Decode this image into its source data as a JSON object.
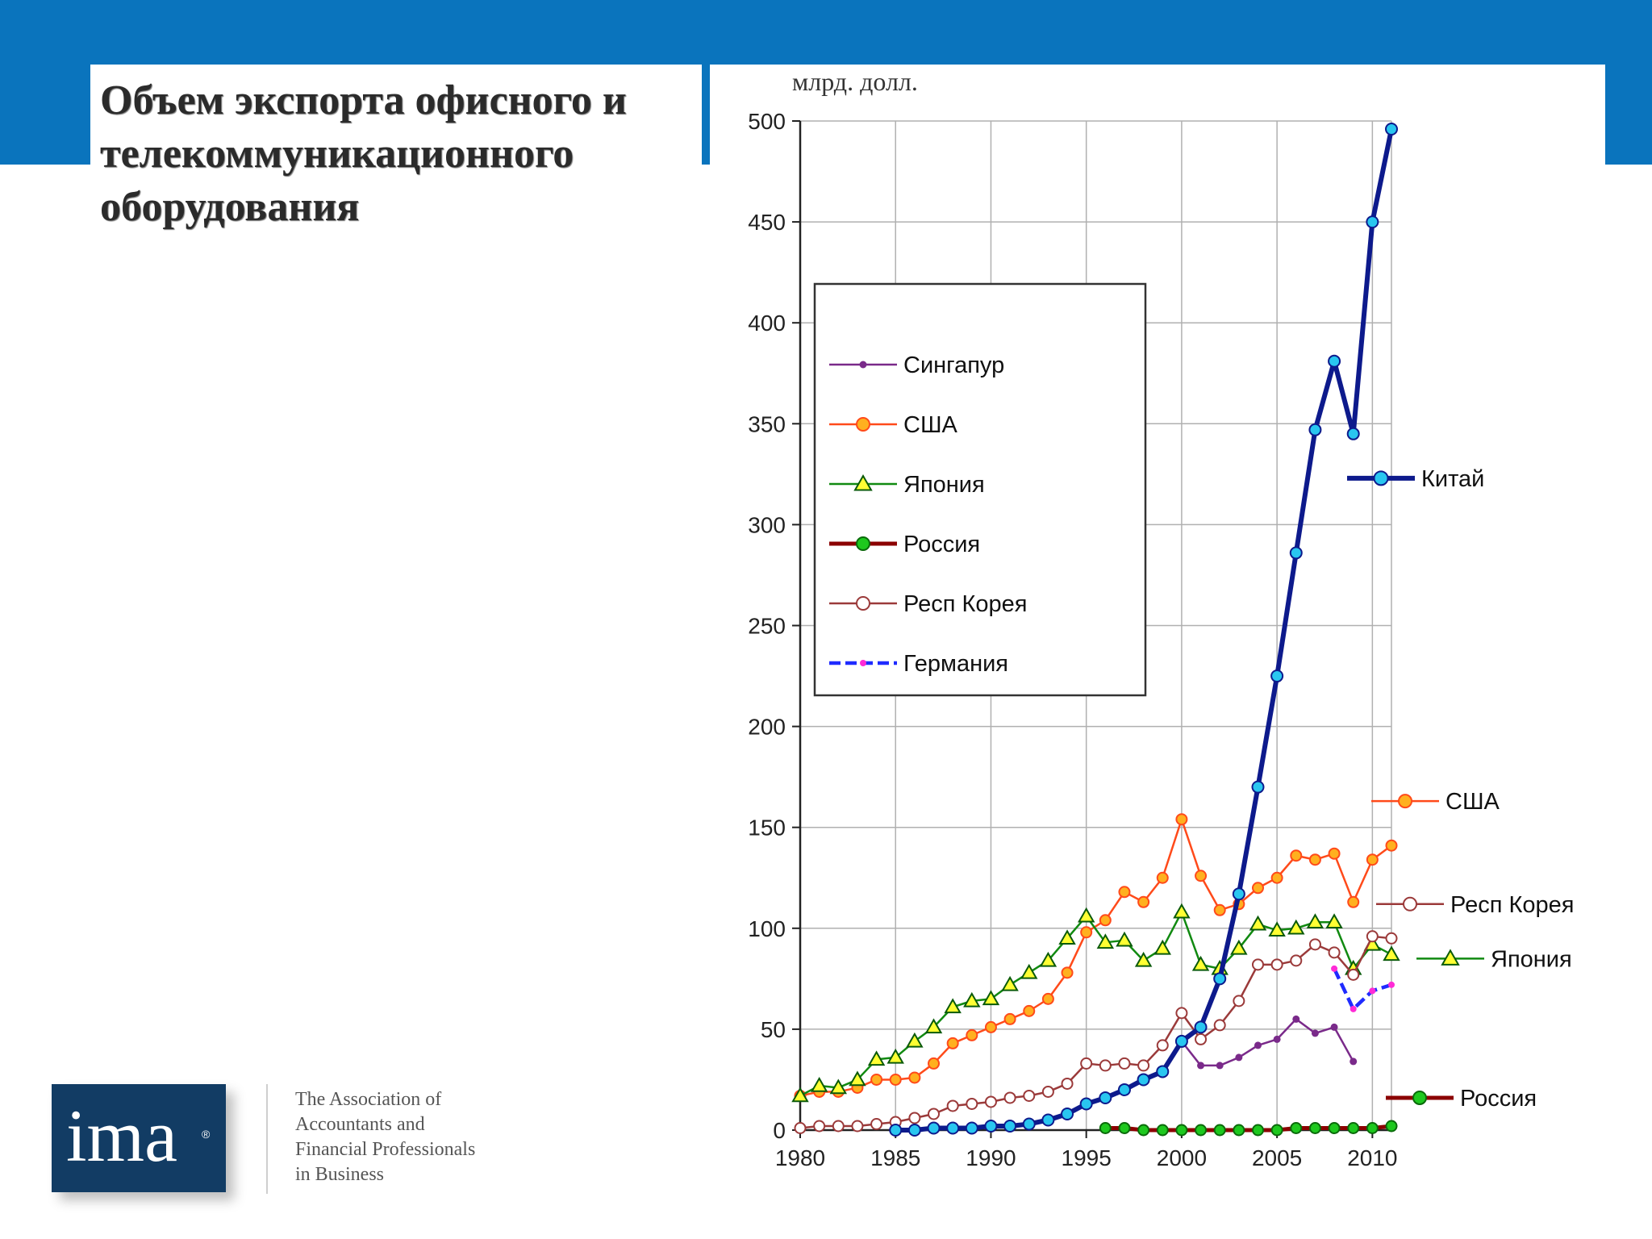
{
  "slide": {
    "title": "Объем экспорта офисного и\nтелекоммуникационного\n оборудования",
    "colors": {
      "band": "#0a74bd"
    }
  },
  "logo": {
    "mark": "ima",
    "registered": "®",
    "org_lines": [
      "The Association of",
      "Accountants and",
      "Financial Professionals",
      "in Business"
    ]
  },
  "chart_data": {
    "type": "line",
    "unit_label": "млрд. долл.",
    "xlabel": "",
    "ylabel": "млрд. долл.",
    "x_ticks": [
      1980,
      1985,
      1990,
      1995,
      2000,
      2005,
      2010
    ],
    "y_ticks": [
      0,
      50,
      100,
      150,
      200,
      250,
      300,
      350,
      400,
      450,
      500
    ],
    "xlim": [
      1980,
      2011
    ],
    "ylim": [
      0,
      500
    ],
    "grid": true,
    "legend_position": "upper-left inside",
    "series": [
      {
        "name": "Сингапур",
        "color": "#7a2a8a",
        "marker": "dot",
        "dash": false,
        "x": [
          2000,
          2001,
          2002,
          2003,
          2004,
          2005,
          2006,
          2007,
          2008,
          2009
        ],
        "y": [
          44,
          32,
          32,
          36,
          42,
          45,
          55,
          48,
          51,
          34
        ]
      },
      {
        "name": "США",
        "color": "#ff4a1a",
        "marker": "circle-orange",
        "dash": false,
        "end_label": "США",
        "x": [
          1980,
          1981,
          1982,
          1983,
          1984,
          1985,
          1986,
          1987,
          1988,
          1989,
          1990,
          1991,
          1992,
          1993,
          1994,
          1995,
          1996,
          1997,
          1998,
          1999,
          2000,
          2001,
          2002,
          2003,
          2004,
          2005,
          2006,
          2007,
          2008,
          2009,
          2010,
          2011
        ],
        "y": [
          17,
          19,
          19,
          21,
          25,
          25,
          26,
          33,
          43,
          47,
          51,
          55,
          59,
          65,
          78,
          98,
          104,
          118,
          113,
          125,
          154,
          126,
          109,
          112,
          120,
          125,
          136,
          134,
          137,
          113,
          134,
          141
        ]
      },
      {
        "name": "Япония",
        "color": "#118a11",
        "marker": "triangle-yellow",
        "dash": false,
        "end_label": "Япония",
        "x": [
          1980,
          1981,
          1982,
          1983,
          1984,
          1985,
          1986,
          1987,
          1988,
          1989,
          1990,
          1991,
          1992,
          1993,
          1994,
          1995,
          1996,
          1997,
          1998,
          1999,
          2000,
          2001,
          2002,
          2003,
          2004,
          2005,
          2006,
          2007,
          2008,
          2009,
          2010,
          2011
        ],
        "y": [
          17,
          22,
          21,
          25,
          35,
          36,
          44,
          51,
          61,
          64,
          65,
          72,
          78,
          84,
          95,
          106,
          93,
          94,
          84,
          90,
          108,
          82,
          80,
          90,
          102,
          99,
          100,
          103,
          103,
          80,
          92,
          87
        ]
      },
      {
        "name": "Россия",
        "color": "#8b0000",
        "marker": "circle-green",
        "dash": false,
        "end_label": "Россия",
        "x": [
          1996,
          1997,
          1998,
          1999,
          2000,
          2001,
          2002,
          2003,
          2004,
          2005,
          2006,
          2007,
          2008,
          2009,
          2010,
          2011
        ],
        "y": [
          1,
          1,
          0,
          0,
          0,
          0,
          0,
          0,
          0,
          0,
          1,
          1,
          1,
          1,
          1,
          2
        ]
      },
      {
        "name": "Респ Корея",
        "color": "#9b3a3a",
        "marker": "circle-open",
        "dash": false,
        "end_label": "Респ Корея",
        "x": [
          1980,
          1981,
          1982,
          1983,
          1984,
          1985,
          1986,
          1987,
          1988,
          1989,
          1990,
          1991,
          1992,
          1993,
          1994,
          1995,
          1996,
          1997,
          1998,
          1999,
          2000,
          2001,
          2002,
          2003,
          2004,
          2005,
          2006,
          2007,
          2008,
          2009,
          2010,
          2011
        ],
        "y": [
          1,
          2,
          2,
          2,
          3,
          4,
          6,
          8,
          12,
          13,
          14,
          16,
          17,
          19,
          23,
          33,
          32,
          33,
          32,
          42,
          58,
          45,
          52,
          64,
          82,
          82,
          84,
          92,
          88,
          77,
          96,
          95
        ]
      },
      {
        "name": "Германия",
        "color": "#1f2bff",
        "marker": "dot-magenta",
        "dash": true,
        "x": [
          2008,
          2009,
          2010,
          2011
        ],
        "y": [
          80,
          60,
          69,
          72
        ]
      },
      {
        "name": "Китай",
        "color": "#0d1a8c",
        "marker": "circle-cyan",
        "dash": false,
        "thick": true,
        "end_label": "Китай",
        "x": [
          1985,
          1986,
          1987,
          1988,
          1989,
          1990,
          1991,
          1992,
          1993,
          1994,
          1995,
          1996,
          1997,
          1998,
          1999,
          2000,
          2001,
          2002,
          2003,
          2004,
          2005,
          2006,
          2007,
          2008,
          2009,
          2010,
          2011
        ],
        "y": [
          0,
          0,
          1,
          1,
          1,
          2,
          2,
          3,
          5,
          8,
          13,
          16,
          20,
          25,
          29,
          44,
          51,
          75,
          117,
          170,
          225,
          286,
          347,
          381,
          345,
          450,
          496
        ]
      }
    ]
  }
}
